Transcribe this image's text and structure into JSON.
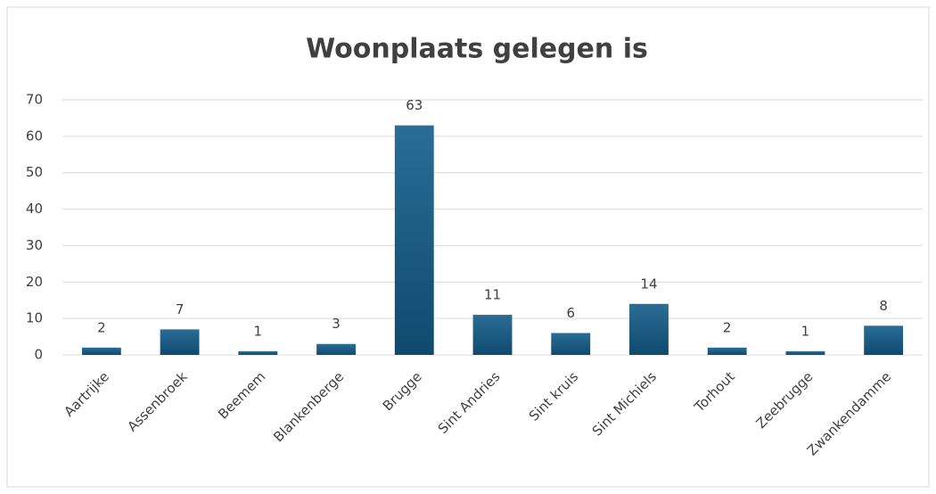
{
  "chart_data": {
    "type": "bar",
    "title": "Woonplaats gelegen is",
    "categories": [
      "Aartrijke",
      "Assenbroek",
      "Beemem",
      "Blankenberge",
      "Brugge",
      "Sint Andries",
      "Sint kruis",
      "Sint Michiels",
      "Torhout",
      "Zeebrugge",
      "Zwankendamme"
    ],
    "values": [
      2,
      7,
      1,
      3,
      63,
      11,
      6,
      14,
      2,
      1,
      8
    ],
    "color": "#175a82",
    "ylim": [
      0,
      70
    ],
    "yticks": [
      0,
      10,
      20,
      30,
      40,
      50,
      60,
      70
    ],
    "grid": true
  }
}
